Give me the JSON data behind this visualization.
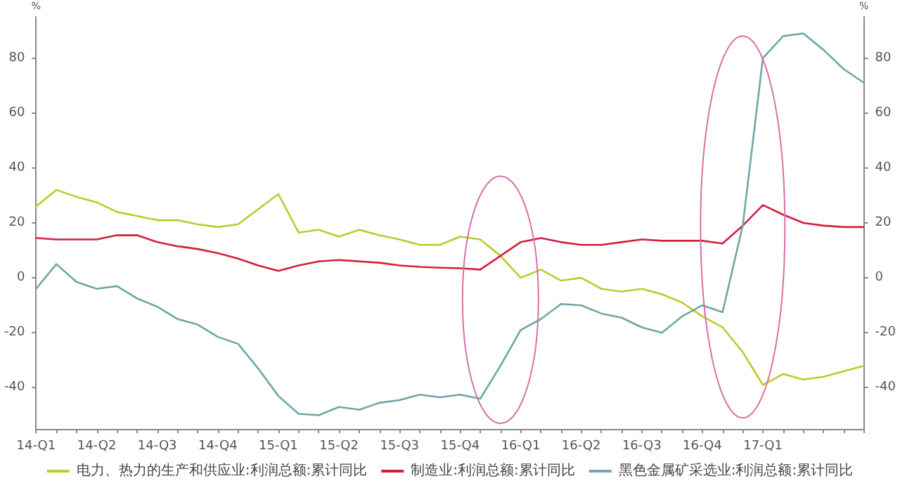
{
  "chart_data": {
    "type": "line",
    "categories": [
      "14-Q1",
      null,
      null,
      "14-Q2",
      null,
      null,
      "14-Q3",
      null,
      null,
      "14-Q4",
      null,
      null,
      "15-Q1",
      null,
      null,
      "15-Q2",
      null,
      null,
      "15-Q3",
      null,
      null,
      "15-Q4",
      null,
      null,
      "16-Q1",
      null,
      null,
      "16-Q2",
      null,
      null,
      "16-Q3",
      null,
      null,
      "16-Q4",
      null,
      null,
      "17-Q1",
      null,
      null,
      null,
      null,
      null
    ],
    "series": [
      {
        "name": "电力、热力的生产和供应业:利润总额:累计同比",
        "color": "#bccb2e",
        "values": [
          26,
          32,
          29.5,
          27.5,
          24,
          22.5,
          21,
          21,
          19.5,
          18.5,
          19.5,
          25,
          30.5,
          16.5,
          17.5,
          15,
          17.5,
          15.5,
          14,
          12,
          12,
          15,
          14,
          8,
          0,
          3,
          -1,
          0,
          -4,
          -5,
          -4,
          -6,
          -9,
          -14,
          -18,
          -27,
          -39,
          -35,
          -37,
          -36,
          -34,
          -32
        ]
      },
      {
        "name": "制造业:利润总额:累计同比",
        "color": "#d2203c",
        "values": [
          14.5,
          14,
          14,
          14,
          15.5,
          15.5,
          13,
          11.5,
          10.5,
          9,
          7,
          4.5,
          2.5,
          4.5,
          6,
          6.5,
          6,
          5.5,
          4.5,
          4,
          3.7,
          3.5,
          3,
          8,
          13,
          14.5,
          13,
          12,
          12,
          13,
          14,
          13.5,
          13.5,
          13.5,
          12.5,
          19,
          26.5,
          23,
          20,
          19,
          18.5,
          18.5
        ]
      },
      {
        "name": "黑色金属矿采选业:利润总额:累计同比",
        "color": "#6fa6a6",
        "values": [
          -4,
          5,
          -1.5,
          -4,
          -3,
          -7.5,
          -10.5,
          -15,
          -17,
          -21.5,
          -24,
          -33,
          -43,
          -49.5,
          -50,
          -47,
          -48,
          -45.5,
          -44.5,
          -42.5,
          -43.5,
          -42.5,
          -44,
          -32,
          -19,
          -15,
          -9.5,
          -10,
          -13,
          -14.5,
          -18,
          -20,
          -14,
          -10,
          -12.5,
          19,
          80,
          88,
          89,
          83,
          76,
          71
        ]
      }
    ],
    "ylabel": "%",
    "y2label": "%",
    "ylim": [
      -55,
      95
    ],
    "yticks": [
      -40,
      -20,
      0,
      20,
      40,
      60,
      80
    ],
    "y2lim": [
      -55,
      95
    ],
    "y2ticks": [
      -40,
      -20,
      0,
      20,
      40,
      60,
      80
    ],
    "grid": false,
    "legend": "bottom",
    "marker": "none",
    "line_style": "solid"
  }
}
